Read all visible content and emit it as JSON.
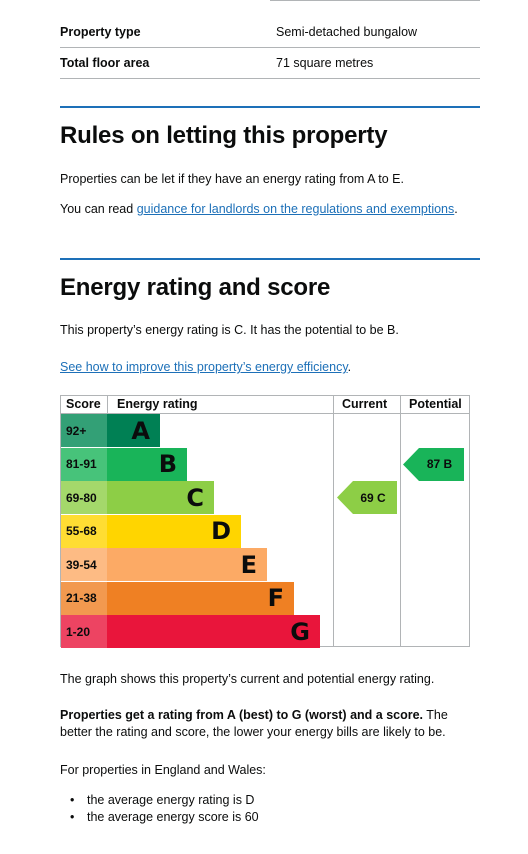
{
  "summary": {
    "rows": [
      {
        "label": "Property type",
        "value": "Semi-detached bungalow"
      },
      {
        "label": "Total floor area",
        "value": "71 square metres"
      }
    ]
  },
  "letting": {
    "heading": "Rules on letting this property",
    "text": "Properties can be let if they have an energy rating from A to E.",
    "guidance_prefix": "You can read ",
    "guidance_link": "guidance for landlords on the regulations and exemptions",
    "guidance_suffix": "."
  },
  "rating": {
    "heading": "Energy rating and score",
    "text": "This property’s energy rating is C. It has the potential to be B.",
    "improve_link": "See how to improve this property’s energy efficiency",
    "improve_suffix": "."
  },
  "graph": {
    "headers": {
      "score": "Score",
      "energy_rating": "Energy rating",
      "current": "Current",
      "potential": "Potential"
    },
    "bands": [
      {
        "score": "92+",
        "letter": "A",
        "color": "#008054",
        "light": "#33a076"
      },
      {
        "score": "81-91",
        "letter": "B",
        "color": "#19b459",
        "light": "#47c37a"
      },
      {
        "score": "69-80",
        "letter": "C",
        "color": "#8dce46",
        "light": "#a4d86b"
      },
      {
        "score": "55-68",
        "letter": "D",
        "color": "#ffd500",
        "light": "#ffdd33"
      },
      {
        "score": "39-54",
        "letter": "E",
        "color": "#fcaa65",
        "light": "#fdbb84"
      },
      {
        "score": "21-38",
        "letter": "F",
        "color": "#ef8023",
        "light": "#f2994f"
      },
      {
        "score": "1-20",
        "letter": "G",
        "color": "#e9153b",
        "light": "#ed4462"
      }
    ],
    "current": {
      "label": "69 C",
      "band_index": 2,
      "color": "#8dce46"
    },
    "potential": {
      "label": "87 B",
      "band_index": 1,
      "color": "#19b459"
    }
  },
  "explain": {
    "graph_text": "The graph shows this property’s current and potential energy rating.",
    "bold_part": "Properties get a rating from A (best) to G (worst) and a score.",
    "rest_part": " The better the rating and score, the lower your energy bills are likely to be.",
    "england_wales": "For properties in England and Wales:",
    "bullets": [
      "the average energy rating is D",
      "the average energy score is 60"
    ]
  }
}
